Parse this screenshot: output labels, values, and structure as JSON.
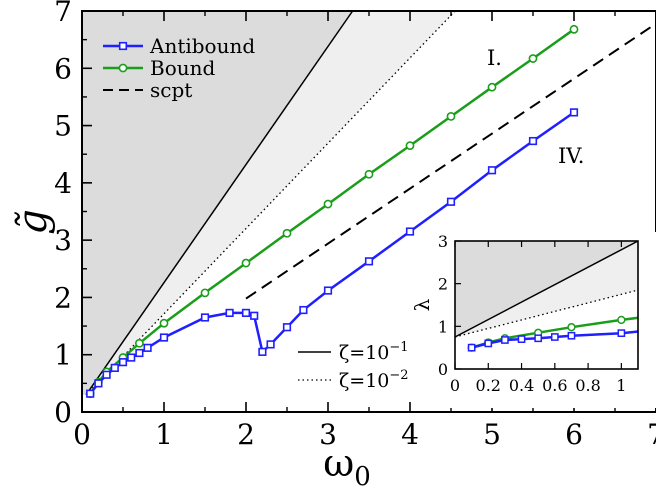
{
  "chart_data": [
    {
      "type": "line",
      "xlabel": "ω",
      "xlabel_sub": "0",
      "ylabel": "g̃",
      "xlim": [
        0,
        7
      ],
      "ylim": [
        0,
        7
      ],
      "xticks": [
        "0",
        "1",
        "2",
        "3",
        "4",
        "5",
        "6",
        "7"
      ],
      "yticks": [
        "0",
        "1",
        "2",
        "3",
        "4",
        "5",
        "6",
        "7"
      ],
      "grid": false,
      "legend_position": "top-left",
      "legend": [
        "Antibound",
        "Bound",
        "scpt"
      ],
      "zeta_legend": [
        "ζ=10",
        "ζ=10"
      ],
      "zeta_exponents": [
        "−1",
        "−2"
      ],
      "annotations": [
        "I.",
        "IV."
      ],
      "colors": {
        "antibound": "#1f1fff",
        "bound": "#1a9e1a",
        "shade_dark": "#dcdcdc",
        "shade_light": "#efefef"
      },
      "series": [
        {
          "name": "Antibound",
          "marker": "square",
          "x": [
            0.1,
            0.2,
            0.3,
            0.4,
            0.5,
            0.6,
            0.7,
            0.8,
            1.0,
            1.5,
            1.8,
            2.0,
            2.1,
            2.2,
            2.3,
            2.5,
            2.7,
            3.0,
            3.5,
            4.0,
            4.5,
            5.0,
            5.5,
            6.0
          ],
          "y": [
            0.32,
            0.5,
            0.65,
            0.77,
            0.87,
            0.95,
            1.03,
            1.12,
            1.3,
            1.65,
            1.73,
            1.73,
            1.68,
            1.05,
            1.18,
            1.48,
            1.78,
            2.12,
            2.63,
            3.15,
            3.67,
            4.22,
            4.73,
            5.23
          ]
        },
        {
          "name": "Bound",
          "marker": "circle",
          "x": [
            0.1,
            0.2,
            0.3,
            0.5,
            0.7,
            1.0,
            1.5,
            2.0,
            2.5,
            3.0,
            3.5,
            4.0,
            4.5,
            5.0,
            5.5,
            6.0
          ],
          "y": [
            0.32,
            0.52,
            0.7,
            0.95,
            1.2,
            1.55,
            2.08,
            2.6,
            3.12,
            3.63,
            4.15,
            4.65,
            5.16,
            5.67,
            6.17,
            6.68
          ]
        },
        {
          "name": "scpt",
          "style": "dashed",
          "x": [
            2.0,
            7.0
          ],
          "y": [
            1.98,
            6.78
          ]
        }
      ],
      "boundaries": [
        {
          "zeta": "1e-1",
          "style": "solid",
          "x": [
            0.05,
            3.3
          ],
          "y": [
            0.3,
            7.0
          ]
        },
        {
          "zeta": "1e-2",
          "style": "dotted",
          "x": [
            0.05,
            4.55
          ],
          "y": [
            0.3,
            7.0
          ]
        }
      ]
    },
    {
      "type": "line",
      "inset": true,
      "ylabel": "λ",
      "xlim": [
        0,
        1.1
      ],
      "ylim": [
        0,
        3
      ],
      "xticks": [
        "0",
        "0.2",
        "0.4",
        "0.6",
        "0.8",
        "1"
      ],
      "xtick_values": [
        0,
        0.2,
        0.4,
        0.6,
        0.8,
        1.0
      ],
      "yticks": [
        "0",
        "1",
        "2",
        "3"
      ],
      "series": [
        {
          "name": "Antibound",
          "marker": "square",
          "x": [
            0.1,
            0.2,
            0.3,
            0.4,
            0.5,
            0.6,
            0.7,
            1.0,
            1.1
          ],
          "y": [
            0.5,
            0.6,
            0.68,
            0.7,
            0.72,
            0.75,
            0.78,
            0.84,
            0.88
          ]
        },
        {
          "name": "Bound",
          "marker": "circle",
          "x": [
            0.1,
            0.2,
            0.3,
            0.5,
            0.7,
            1.0,
            1.1
          ],
          "y": [
            0.5,
            0.62,
            0.72,
            0.85,
            0.98,
            1.15,
            1.2
          ]
        }
      ],
      "boundaries": [
        {
          "style": "solid",
          "x": [
            0.0,
            1.1
          ],
          "y": [
            0.75,
            3.0
          ]
        },
        {
          "style": "dotted",
          "x": [
            0.0,
            1.1
          ],
          "y": [
            0.75,
            1.85
          ]
        }
      ]
    }
  ]
}
